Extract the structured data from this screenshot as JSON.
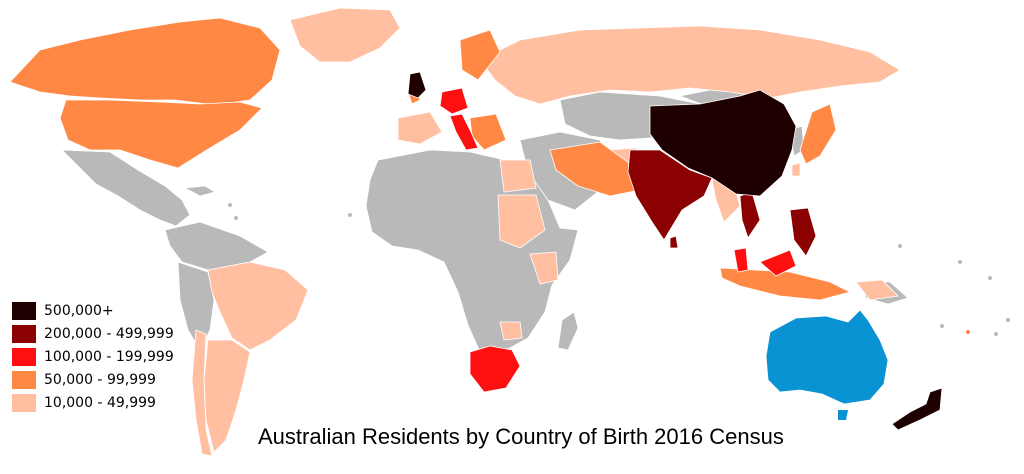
{
  "title": "Australian Residents by Country of Birth 2016 Census",
  "colors": {
    "ocean": "#ffffff",
    "no_data": "#b9b9b9",
    "australia": "#0a93d2",
    "tier_500k_plus": "#1e0000",
    "tier_200k_499k": "#8b0000",
    "tier_100k_199k": "#ff1010",
    "tier_50k_99k": "#ff8844",
    "tier_10k_49k": "#ffbfa0"
  },
  "legend": [
    {
      "label": "500,000+",
      "color": "#1e0000"
    },
    {
      "label": "200,000 - 499,999",
      "color": "#8b0000"
    },
    {
      "label": "100,000 - 199,999",
      "color": "#ff1010"
    },
    {
      "label": "50,000 - 99,999",
      "color": "#ff8844"
    },
    {
      "label": "10,000 - 49,999",
      "color": "#ffbfa0"
    }
  ]
}
